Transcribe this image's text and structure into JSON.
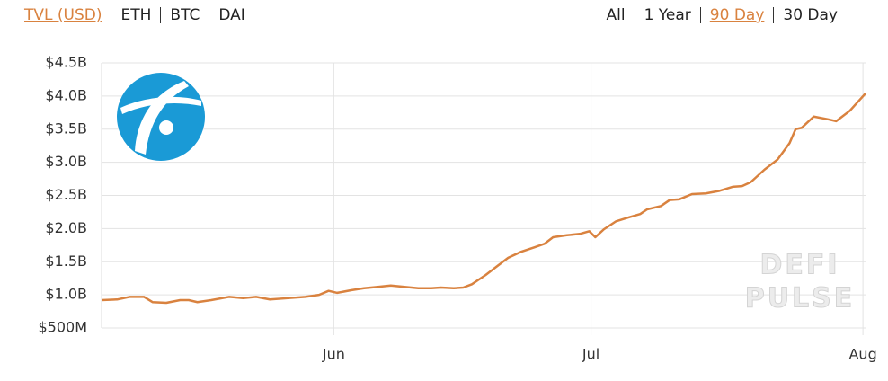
{
  "tabs": {
    "assets": [
      "TVL (USD)",
      "ETH",
      "BTC",
      "DAI"
    ],
    "ranges": [
      "All",
      "1 Year",
      "90 Day",
      "30 Day"
    ]
  },
  "chart_data": {
    "type": "line",
    "color": "#d9823f",
    "grid": true,
    "watermark": [
      "DEFI",
      "PULSE"
    ],
    "x": [
      0,
      1.8,
      3.3,
      4.9,
      5.9,
      7.5,
      9.1,
      10.1,
      11.1,
      12.7,
      14.8,
      16.4,
      17.9,
      19.5,
      21.6,
      23.6,
      25.2,
      26.3,
      27.3,
      28.9,
      30.4,
      32,
      33.5,
      35.1,
      36.7,
      38.2,
      39.3,
      40.8,
      41.9,
      42.9,
      44.5,
      45.6,
      47.1,
      48.6,
      50.2,
      51.3,
      52.3,
      53.9,
      55.4,
      56.5,
      57.2,
      58.2,
      59.6,
      61.1,
      62.4,
      63.2,
      64.8,
      65.8,
      66.9,
      68.4,
      70,
      71.6,
      73.1,
      74.2,
      75.2,
      76.8,
      78.3,
      79.7,
      80.4,
      81.1,
      82.5,
      84.1,
      85.1,
      86.7,
      88.5
    ],
    "values": [
      0.92,
      0.93,
      0.97,
      0.97,
      0.89,
      0.88,
      0.92,
      0.92,
      0.89,
      0.92,
      0.97,
      0.95,
      0.97,
      0.93,
      0.95,
      0.97,
      1.0,
      1.06,
      1.03,
      1.07,
      1.1,
      1.12,
      1.14,
      1.12,
      1.1,
      1.1,
      1.11,
      1.1,
      1.11,
      1.16,
      1.3,
      1.41,
      1.56,
      1.65,
      1.72,
      1.77,
      1.87,
      1.9,
      1.92,
      1.96,
      1.87,
      1.99,
      2.11,
      2.17,
      2.22,
      2.29,
      2.34,
      2.43,
      2.44,
      2.52,
      2.53,
      2.57,
      2.63,
      2.64,
      2.7,
      2.89,
      3.04,
      3.29,
      3.5,
      3.52,
      3.69,
      3.65,
      3.62,
      3.78,
      4.04
    ],
    "xlim": [
      0,
      88.5
    ],
    "xticks": [
      {
        "value": 26.9,
        "label": "Jun"
      },
      {
        "value": 56.7,
        "label": "Jul"
      },
      {
        "value": 88.2,
        "label": "Aug"
      }
    ],
    "ylim": [
      0.5,
      4.5
    ],
    "yticks": [
      {
        "value": 0.5,
        "label": "$500M"
      },
      {
        "value": 1.0,
        "label": "$1.0B"
      },
      {
        "value": 1.5,
        "label": "$1.5B"
      },
      {
        "value": 2.0,
        "label": "$2.0B"
      },
      {
        "value": 2.5,
        "label": "$2.5B"
      },
      {
        "value": 3.0,
        "label": "$3.0B"
      },
      {
        "value": 3.5,
        "label": "$3.5B"
      },
      {
        "value": 4.0,
        "label": "$4.0B"
      },
      {
        "value": 4.5,
        "label": "$4.5B"
      }
    ]
  }
}
